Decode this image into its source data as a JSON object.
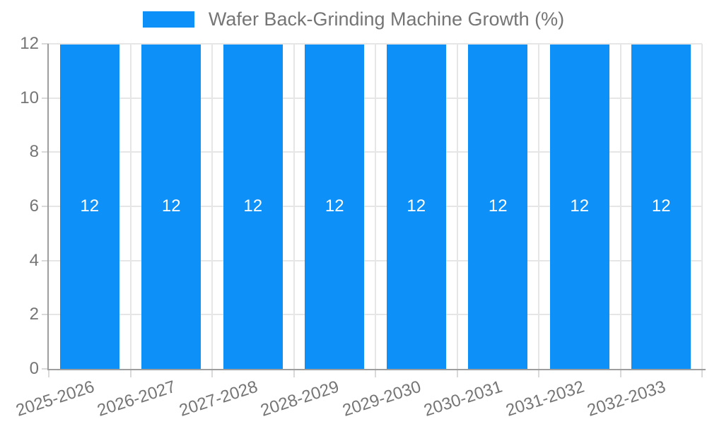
{
  "chart_data": {
    "type": "bar",
    "title": "Wafer Back-Grinding Machine Growth (%)",
    "legend_position": "top",
    "categories": [
      "2025-2026",
      "2026-2027",
      "2027-2028",
      "2028-2029",
      "2029-2030",
      "2030-2031",
      "2031-2032",
      "2032-2033"
    ],
    "values": [
      12,
      12,
      12,
      12,
      12,
      12,
      12,
      12
    ],
    "data_labels": [
      "12",
      "12",
      "12",
      "12",
      "12",
      "12",
      "12",
      "12"
    ],
    "xlabel": "",
    "ylabel": "",
    "ylim": [
      0,
      12
    ],
    "yticks": [
      0,
      2,
      4,
      6,
      8,
      10,
      12
    ],
    "grid": "horizontal and vertical light gray gridlines",
    "x_label_rotation_deg": -18,
    "colors": {
      "bar": "#0E90F9",
      "data_label": "#FFFFFF",
      "axis_text": "#757575",
      "grid": "#E6E6E6",
      "tick": "#D9D9D9",
      "axis_line": "#9E9E9E",
      "background": "#FFFFFF"
    }
  }
}
